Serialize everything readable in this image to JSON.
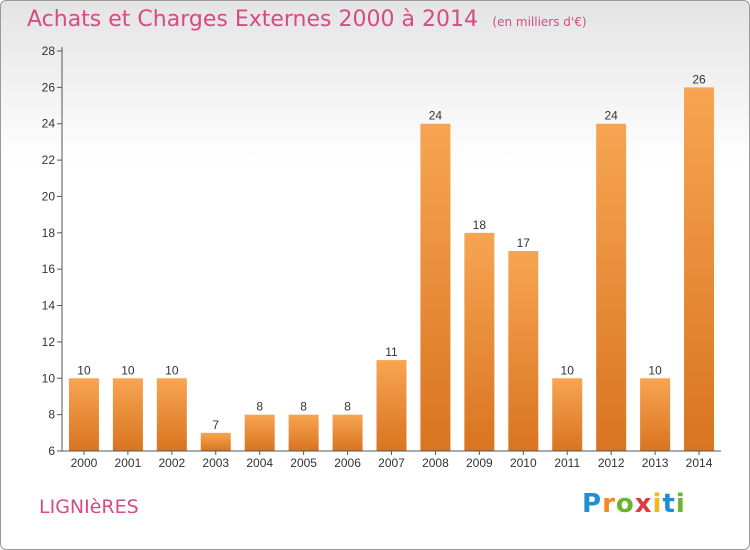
{
  "header": {
    "title": "Achats et Charges Externes 2000 à 2014",
    "unit": "(en milliers d'€)"
  },
  "commune": "LIGNIèRES",
  "logo": {
    "letters": [
      "P",
      "r",
      "o",
      "x",
      "i",
      "t",
      "i"
    ]
  },
  "colors": {
    "bar_light": "#f7a552",
    "bar_dark": "#d97420",
    "title": "#d64a86"
  },
  "chart_data": {
    "type": "bar",
    "categories": [
      "2000",
      "2001",
      "2002",
      "2003",
      "2004",
      "2005",
      "2006",
      "2007",
      "2008",
      "2009",
      "2010",
      "2011",
      "2012",
      "2013",
      "2014"
    ],
    "values": [
      10,
      10,
      10,
      7,
      8,
      8,
      8,
      11,
      24,
      18,
      17,
      10,
      24,
      10,
      26
    ],
    "title": "Achats et Charges Externes 2000 à 2014",
    "ylim": [
      6,
      28
    ],
    "yticks": [
      6,
      8,
      10,
      12,
      14,
      16,
      18,
      20,
      22,
      24,
      26,
      28
    ],
    "grid": false,
    "legend": "none"
  }
}
